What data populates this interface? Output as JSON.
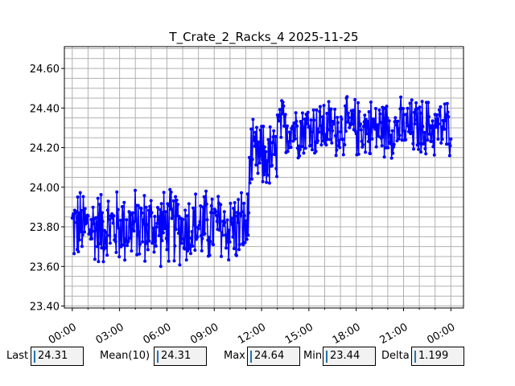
{
  "chart_data": {
    "type": "line",
    "title": "T_Crate_2_Racks_4 2025-11-25",
    "xlabel": "",
    "ylabel": "",
    "x_range_hours": [
      -0.5,
      24.8
    ],
    "ylim": [
      23.39,
      24.71
    ],
    "x_tick_labels": [
      "00:00",
      "03:00",
      "06:00",
      "09:00",
      "12:00",
      "15:00",
      "18:00",
      "21:00",
      "00:00"
    ],
    "x_tick_hours": [
      0,
      3,
      6,
      9,
      12,
      15,
      18,
      21,
      24
    ],
    "y_ticks": [
      23.4,
      23.6,
      23.8,
      24.0,
      24.2,
      24.4,
      24.6
    ],
    "y_tick_labels": [
      "23.40",
      "23.60",
      "23.80",
      "24.00",
      "24.20",
      "24.40",
      "24.60"
    ],
    "grid": true,
    "series": [
      {
        "name": "",
        "color": "#0000ff",
        "segments": [
          {
            "hours": [
              0,
              11.2
            ],
            "center": 23.8,
            "spread": 0.22
          },
          {
            "hours": [
              11.2,
              13.0
            ],
            "center": 24.15,
            "spread": 0.2
          },
          {
            "hours": [
              13.0,
              24.0
            ],
            "center": 24.3,
            "spread": 0.17
          }
        ]
      }
    ]
  },
  "stats": {
    "last_label": "Last",
    "last_value": "24.31",
    "mean_label": "Mean(10)",
    "mean_value": "24.31",
    "max_label": "Max",
    "max_value": "24.64",
    "min_label": "Min",
    "min_value": "23.44",
    "delta_label": "Delta",
    "delta_value": "1.199"
  }
}
